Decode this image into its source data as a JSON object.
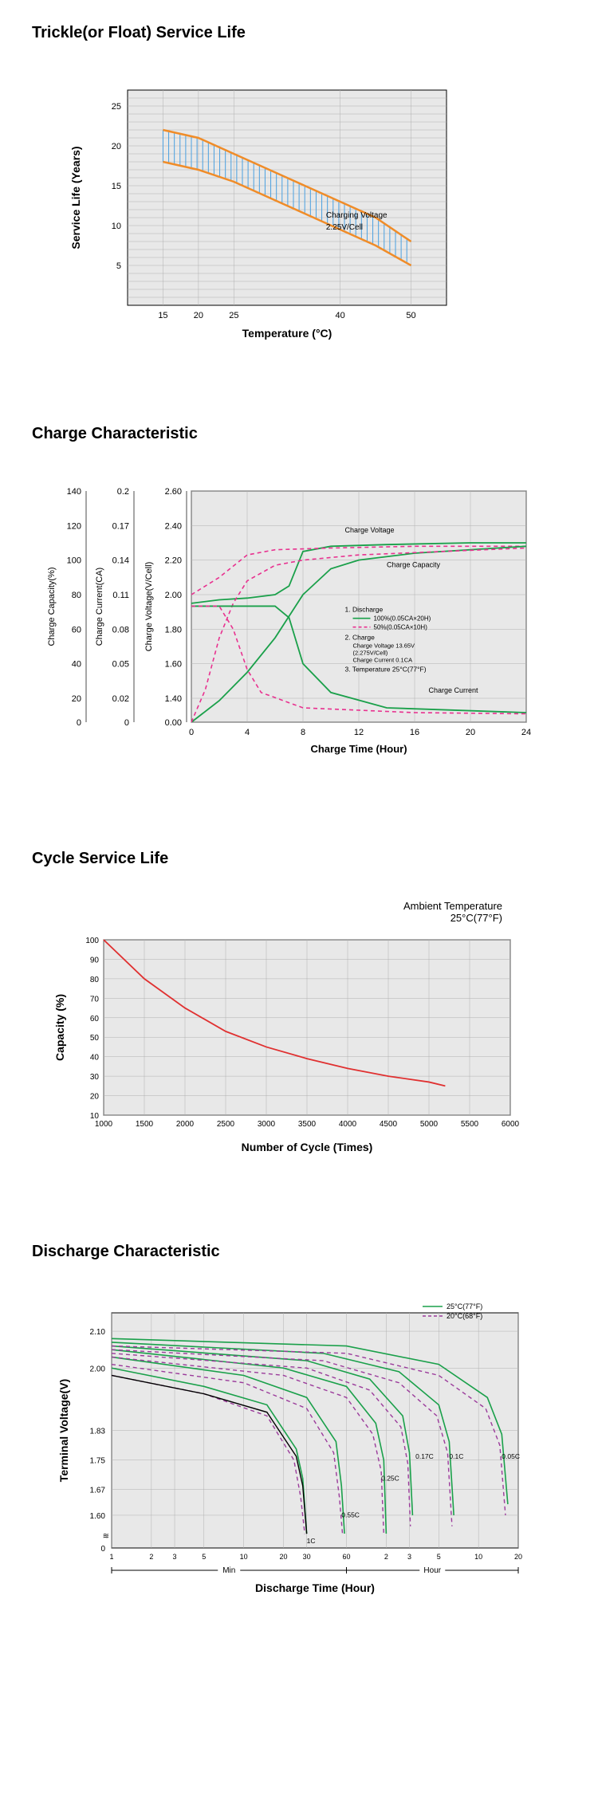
{
  "chart1": {
    "title": "Trickle(or Float) Service Life",
    "xlabel": "Temperature (°C)",
    "ylabel": "Service Life (Years)",
    "xlim": [
      10,
      55
    ],
    "ylim": [
      0,
      27
    ],
    "xticks": [
      15,
      20,
      25,
      40,
      50
    ],
    "yticks": [
      5,
      10,
      15,
      20,
      25
    ],
    "grid_color": "#b0b0b0",
    "bg_color": "#e8e8e8",
    "band_upper": [
      [
        15,
        22
      ],
      [
        20,
        21
      ],
      [
        25,
        19
      ],
      [
        30,
        17
      ],
      [
        35,
        15
      ],
      [
        40,
        13
      ],
      [
        45,
        11
      ],
      [
        50,
        8
      ]
    ],
    "band_lower": [
      [
        15,
        18
      ],
      [
        20,
        17
      ],
      [
        25,
        15.5
      ],
      [
        30,
        13.5
      ],
      [
        35,
        11.5
      ],
      [
        40,
        9.5
      ],
      [
        45,
        7.5
      ],
      [
        50,
        5
      ]
    ],
    "band_stroke": "#f08c28",
    "band_stroke_w": 2.5,
    "hatch_color": "#4aa0e0",
    "annotation_top": "Charging Voltage",
    "annotation_bot": "2.25V/Cell",
    "anno_x": 38,
    "anno_y_top": 11,
    "anno_y_bot": 9.5
  },
  "chart2": {
    "title": "Charge Characteristic",
    "xlabel": "Charge Time  (Hour)",
    "y1label": "Charge Capacity(%)",
    "y2label": "Charge Current(CA)",
    "y3label": "Charge Voltage(V/Cell)",
    "xlim": [
      0,
      24
    ],
    "xticks": [
      0,
      4,
      8,
      12,
      16,
      20,
      24
    ],
    "y1lim": [
      0,
      140
    ],
    "y1ticks": [
      0,
      20,
      40,
      60,
      80,
      100,
      120,
      140
    ],
    "y2lim": [
      0,
      0.2
    ],
    "y2ticks": [
      0,
      0.02,
      0.05,
      0.08,
      0.11,
      0.14,
      0.17,
      0.2
    ],
    "y3lim": [
      0,
      2.6
    ],
    "y3ticks": [
      0,
      1.4,
      1.6,
      1.8,
      2.0,
      2.2,
      2.4,
      2.6
    ],
    "bg_color": "#e8e8e8",
    "grid_color": "#b0b0b0",
    "color_100": "#1aa04a",
    "color_50": "#e8318f",
    "voltage_100": [
      [
        0,
        1.95
      ],
      [
        2,
        1.97
      ],
      [
        4,
        1.98
      ],
      [
        6,
        2.0
      ],
      [
        7,
        2.05
      ],
      [
        8,
        2.25
      ],
      [
        10,
        2.28
      ],
      [
        14,
        2.29
      ],
      [
        20,
        2.3
      ],
      [
        24,
        2.3
      ]
    ],
    "voltage_50": [
      [
        0,
        2.0
      ],
      [
        2,
        2.1
      ],
      [
        4,
        2.23
      ],
      [
        6,
        2.26
      ],
      [
        10,
        2.27
      ],
      [
        16,
        2.28
      ],
      [
        24,
        2.28
      ]
    ],
    "capacity_100": [
      [
        0,
        0
      ],
      [
        2,
        18
      ],
      [
        4,
        35
      ],
      [
        6,
        55
      ],
      [
        8,
        80
      ],
      [
        10,
        95
      ],
      [
        12,
        100
      ],
      [
        16,
        104
      ],
      [
        24,
        108
      ]
    ],
    "capacity_50": [
      [
        0,
        0
      ],
      [
        1,
        25
      ],
      [
        2,
        55
      ],
      [
        3,
        75
      ],
      [
        4,
        88
      ],
      [
        6,
        97
      ],
      [
        8,
        100
      ],
      [
        12,
        103
      ],
      [
        24,
        107
      ]
    ],
    "current_100": [
      [
        0,
        0.1
      ],
      [
        2,
        0.1
      ],
      [
        4,
        0.1
      ],
      [
        6,
        0.1
      ],
      [
        7,
        0.09
      ],
      [
        8,
        0.05
      ],
      [
        10,
        0.025
      ],
      [
        14,
        0.012
      ],
      [
        24,
        0.008
      ]
    ],
    "current_50": [
      [
        0,
        0.1
      ],
      [
        1,
        0.1
      ],
      [
        2,
        0.1
      ],
      [
        3,
        0.08
      ],
      [
        4,
        0.045
      ],
      [
        5,
        0.025
      ],
      [
        8,
        0.012
      ],
      [
        16,
        0.008
      ],
      [
        24,
        0.007
      ]
    ],
    "label_cv": "Charge Voltage",
    "label_cc": "Charge Capacity",
    "label_ci": "Charge Current",
    "legend_title_1": "1.  Discharge",
    "legend_line_100": "100%(0.05CA×20H)",
    "legend_line_50": "50%(0.05CA×10H)",
    "legend_title_2": "2.  Charge",
    "legend_sub_2a": "Charge Voltage 13.65V",
    "legend_sub_2b": "(2.275V/Cell)",
    "legend_sub_2c": "Charge Current 0.1CA",
    "legend_title_3": "3.  Temperature 25°C(77°F)"
  },
  "chart3": {
    "title": "Cycle Service Life",
    "subtitle_1": "Ambient  Temperature",
    "subtitle_2": "25°C(77°F)",
    "xlabel": "Number  of  Cycle  (Times)",
    "ylabel": "Capacity (%)",
    "xlim": [
      1000,
      6000
    ],
    "ylim": [
      10,
      100
    ],
    "xticks": [
      1000,
      1500,
      2000,
      2500,
      3000,
      3500,
      4000,
      4500,
      5000,
      5500,
      6000
    ],
    "yticks": [
      10,
      20,
      30,
      40,
      50,
      60,
      70,
      80,
      90,
      100
    ],
    "bg_color": "#e8e8e8",
    "grid_color": "#b0b0b0",
    "line_color": "#e03030",
    "data": [
      [
        1000,
        100
      ],
      [
        1500,
        80
      ],
      [
        2000,
        65
      ],
      [
        2500,
        53
      ],
      [
        3000,
        45
      ],
      [
        3500,
        39
      ],
      [
        4000,
        34
      ],
      [
        4500,
        30
      ],
      [
        5000,
        27
      ],
      [
        5200,
        25
      ]
    ]
  },
  "chart4": {
    "title": "Discharge Characteristic",
    "xlabel": "Discharge  Time  (Hour)",
    "ylabel": "Terminal Voltage(V)",
    "xlim_log_min": 1,
    "xlim_log_max": 1200,
    "ylim": [
      0,
      2.15
    ],
    "yticks": [
      0,
      1.6,
      1.67,
      1.75,
      1.83,
      2.0,
      2.1
    ],
    "xticks_min": [
      1,
      2,
      3,
      5,
      10,
      20,
      30,
      60
    ],
    "xticks_hr": [
      2,
      3,
      5,
      10,
      20
    ],
    "bg_color": "#e8e8e8",
    "grid_color": "#b0b0b0",
    "temp25_color": "#1aa04a",
    "temp20_color": "#9b3b9b",
    "legend_25": "25°C(77°F)",
    "legend_20": "20°C(68°F)",
    "label_min": "Min",
    "label_hour": "Hour",
    "rates": [
      "1C",
      "0.55C",
      "0.25C",
      "0.17C",
      "0.1C",
      "0.05C"
    ],
    "curves_25": {
      "1C": [
        [
          1,
          2.0
        ],
        [
          5,
          1.95
        ],
        [
          15,
          1.9
        ],
        [
          25,
          1.78
        ],
        [
          28,
          1.7
        ],
        [
          30,
          1.55
        ]
      ],
      "0.55C": [
        [
          1,
          2.03
        ],
        [
          10,
          1.98
        ],
        [
          30,
          1.92
        ],
        [
          50,
          1.8
        ],
        [
          55,
          1.68
        ],
        [
          58,
          1.55
        ]
      ],
      "0.25C": [
        [
          1,
          2.05
        ],
        [
          20,
          2.0
        ],
        [
          60,
          1.95
        ],
        [
          100,
          1.85
        ],
        [
          115,
          1.75
        ],
        [
          120,
          1.55
        ]
      ],
      "0.17C": [
        [
          1,
          2.06
        ],
        [
          30,
          2.02
        ],
        [
          90,
          1.97
        ],
        [
          160,
          1.87
        ],
        [
          180,
          1.77
        ],
        [
          190,
          1.6
        ]
      ],
      "0.1C": [
        [
          1,
          2.07
        ],
        [
          40,
          2.04
        ],
        [
          150,
          1.99
        ],
        [
          300,
          1.9
        ],
        [
          360,
          1.8
        ],
        [
          390,
          1.6
        ]
      ],
      "0.05C": [
        [
          1,
          2.08
        ],
        [
          60,
          2.06
        ],
        [
          300,
          2.01
        ],
        [
          700,
          1.92
        ],
        [
          900,
          1.82
        ],
        [
          1000,
          1.63
        ]
      ]
    },
    "curves_20": {
      "1C": [
        [
          1,
          1.98
        ],
        [
          5,
          1.93
        ],
        [
          15,
          1.87
        ],
        [
          24,
          1.75
        ],
        [
          27,
          1.65
        ],
        [
          29,
          1.52
        ]
      ],
      "0.55C": [
        [
          1,
          2.01
        ],
        [
          10,
          1.96
        ],
        [
          30,
          1.89
        ],
        [
          48,
          1.77
        ],
        [
          53,
          1.65
        ],
        [
          56,
          1.52
        ]
      ],
      "0.25C": [
        [
          1,
          2.03
        ],
        [
          20,
          1.98
        ],
        [
          60,
          1.92
        ],
        [
          95,
          1.82
        ],
        [
          110,
          1.72
        ],
        [
          115,
          1.52
        ]
      ],
      "0.17C": [
        [
          1,
          2.04
        ],
        [
          30,
          2.0
        ],
        [
          90,
          1.94
        ],
        [
          155,
          1.84
        ],
        [
          175,
          1.74
        ],
        [
          183,
          1.57
        ]
      ],
      "0.1C": [
        [
          1,
          2.05
        ],
        [
          40,
          2.02
        ],
        [
          150,
          1.96
        ],
        [
          290,
          1.87
        ],
        [
          350,
          1.77
        ],
        [
          378,
          1.57
        ]
      ],
      "0.05C": [
        [
          1,
          2.06
        ],
        [
          60,
          2.04
        ],
        [
          300,
          1.98
        ],
        [
          680,
          1.89
        ],
        [
          870,
          1.79
        ],
        [
          960,
          1.6
        ]
      ]
    }
  }
}
